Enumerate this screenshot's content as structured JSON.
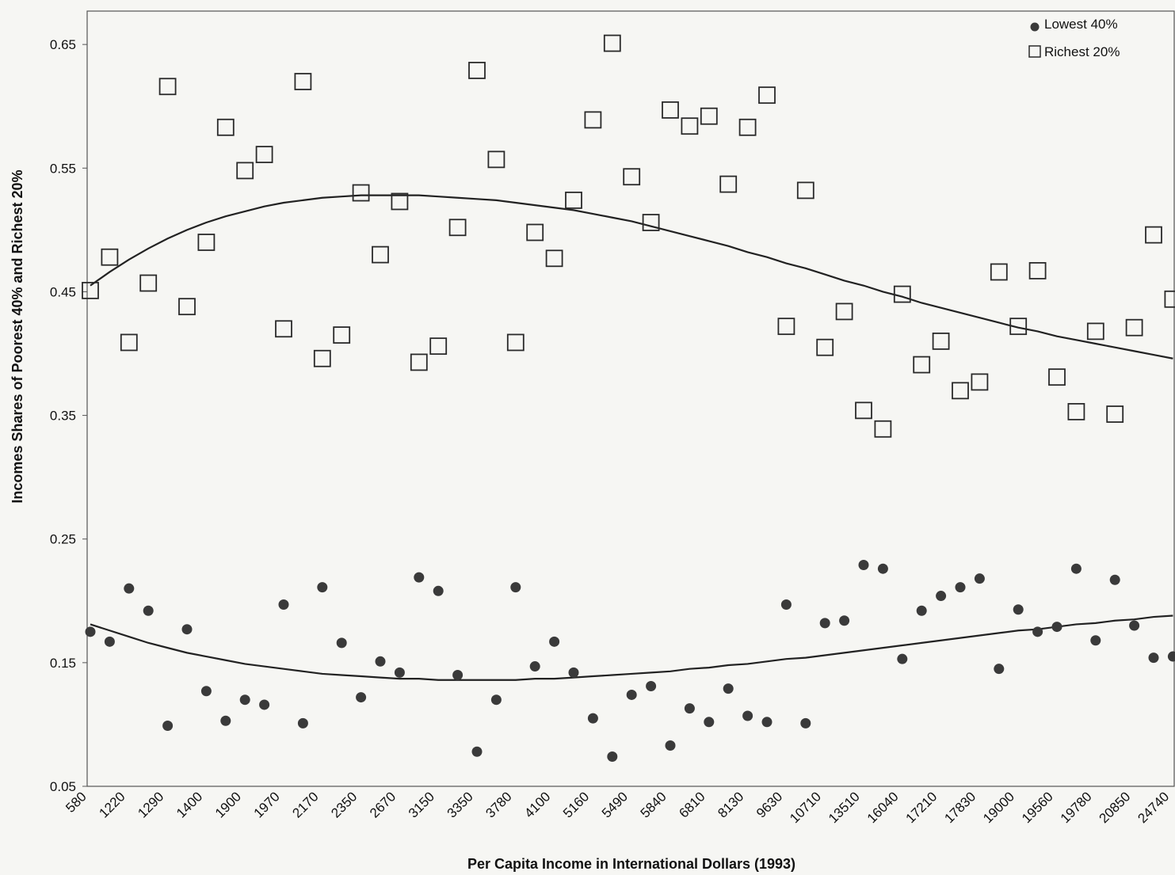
{
  "chart_data": {
    "type": "scatter",
    "x_label": "Per Capita Income in International Dollars (1993)",
    "y_label": "Incomes Shares of Poorest 40% and Richest 20%",
    "categories": [
      "580",
      null,
      "1220",
      null,
      "1290",
      null,
      "1400",
      null,
      "1900",
      null,
      "1970",
      null,
      "2170",
      null,
      "2350",
      null,
      "2670",
      null,
      "3150",
      null,
      "3350",
      null,
      "3780",
      null,
      "4100",
      null,
      "5160",
      null,
      "5490",
      null,
      "5840",
      null,
      "6810",
      null,
      "8130",
      null,
      "9630",
      null,
      "10710",
      null,
      "13510",
      null,
      "16040",
      null,
      "17210",
      null,
      "17830",
      null,
      "19000",
      null,
      "19560",
      null,
      "19780",
      null,
      "20850",
      null,
      "24740"
    ],
    "ylim": [
      0.05,
      0.677
    ],
    "yticks": [
      0.05,
      0.15,
      0.25,
      0.35,
      0.45,
      0.55,
      0.65
    ],
    "legend": "top-right",
    "series": [
      {
        "name": "Lowest 40%",
        "marker": "circle",
        "color": "#3a3a3a",
        "values": [
          0.175,
          0.167,
          0.21,
          0.192,
          0.099,
          0.177,
          0.127,
          0.103,
          0.12,
          0.116,
          0.197,
          0.101,
          0.211,
          0.166,
          0.122,
          0.151,
          0.142,
          0.219,
          0.208,
          0.14,
          0.078,
          0.12,
          0.211,
          0.147,
          0.167,
          0.142,
          0.105,
          0.074,
          0.124,
          0.131,
          0.083,
          0.113,
          0.102,
          0.129,
          0.107,
          0.102,
          0.197,
          0.101,
          0.182,
          0.184,
          0.229,
          0.226,
          0.153,
          0.192,
          0.204,
          0.211,
          0.218,
          0.145,
          0.193,
          0.175,
          0.179,
          0.226,
          0.168,
          0.217,
          0.18,
          0.154,
          0.155
        ],
        "trend": [
          0.181,
          0.176,
          0.171,
          0.166,
          0.162,
          0.158,
          0.155,
          0.152,
          0.149,
          0.147,
          0.145,
          0.143,
          0.141,
          0.14,
          0.139,
          0.138,
          0.137,
          0.137,
          0.136,
          0.136,
          0.136,
          0.136,
          0.136,
          0.137,
          0.137,
          0.138,
          0.139,
          0.14,
          0.141,
          0.142,
          0.143,
          0.145,
          0.146,
          0.148,
          0.149,
          0.151,
          0.153,
          0.154,
          0.156,
          0.158,
          0.16,
          0.162,
          0.164,
          0.166,
          0.168,
          0.17,
          0.172,
          0.174,
          0.176,
          0.177,
          0.179,
          0.181,
          0.182,
          0.184,
          0.185,
          0.187,
          0.188
        ]
      },
      {
        "name": "Richest 20%",
        "marker": "square",
        "color": "#2a2a2a",
        "values": [
          0.451,
          0.478,
          0.409,
          0.457,
          0.616,
          0.438,
          0.49,
          0.583,
          0.548,
          0.561,
          0.42,
          0.62,
          0.396,
          0.415,
          0.53,
          0.48,
          0.523,
          0.393,
          0.406,
          0.502,
          0.629,
          0.557,
          0.409,
          0.498,
          0.477,
          0.524,
          0.589,
          0.651,
          0.543,
          0.506,
          0.597,
          0.584,
          0.592,
          0.537,
          0.583,
          0.609,
          0.422,
          0.532,
          0.405,
          0.434,
          0.354,
          0.339,
          0.448,
          0.391,
          0.41,
          0.37,
          0.377,
          0.466,
          0.422,
          0.467,
          0.381,
          0.353,
          0.418,
          0.351,
          0.421,
          0.496,
          0.444
        ],
        "trend": [
          0.455,
          0.466,
          0.476,
          0.485,
          0.493,
          0.5,
          0.506,
          0.511,
          0.515,
          0.519,
          0.522,
          0.524,
          0.526,
          0.527,
          0.528,
          0.528,
          0.528,
          0.528,
          0.527,
          0.526,
          0.525,
          0.524,
          0.522,
          0.52,
          0.518,
          0.516,
          0.513,
          0.51,
          0.507,
          0.503,
          0.499,
          0.495,
          0.491,
          0.487,
          0.482,
          0.478,
          0.473,
          0.469,
          0.464,
          0.459,
          0.455,
          0.45,
          0.446,
          0.441,
          0.437,
          0.433,
          0.429,
          0.425,
          0.421,
          0.418,
          0.414,
          0.411,
          0.408,
          0.405,
          0.402,
          0.399,
          0.396
        ]
      }
    ]
  }
}
